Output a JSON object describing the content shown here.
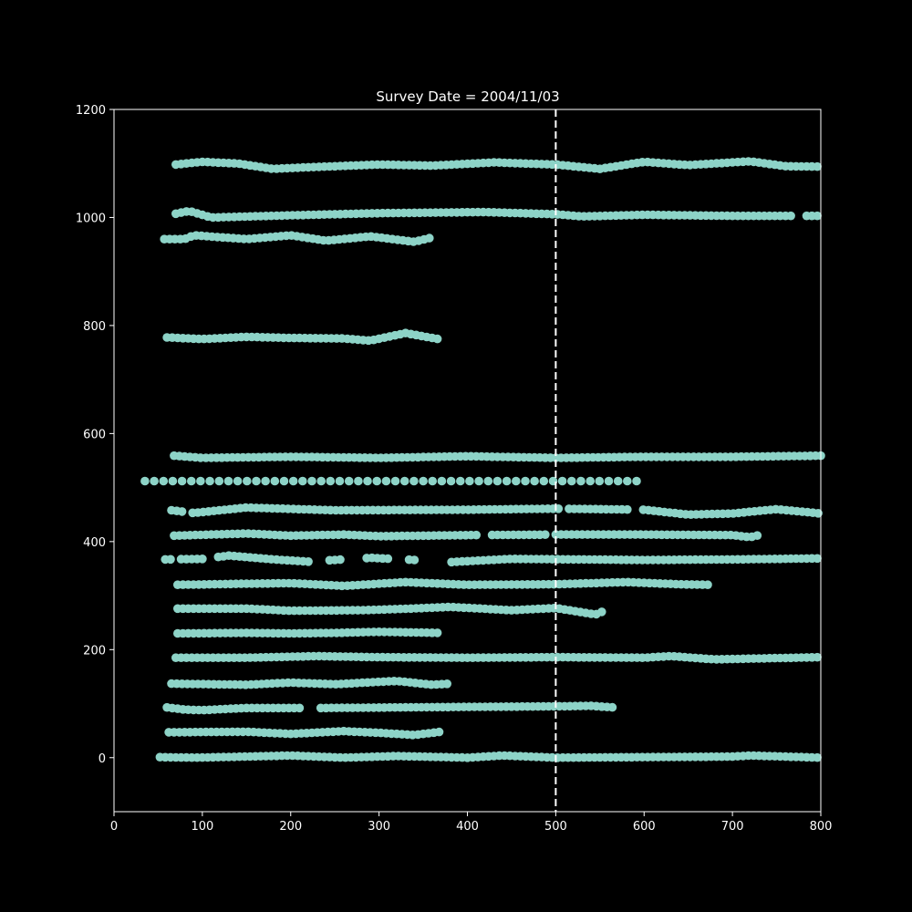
{
  "chart_data": {
    "type": "scatter",
    "title": "Survey Date = 2004/11/03",
    "xlabel": "",
    "ylabel": "",
    "xlim": [
      0,
      800
    ],
    "ylim": [
      -100,
      1200
    ],
    "xticks": [
      0,
      100,
      200,
      300,
      400,
      500,
      600,
      700,
      800
    ],
    "yticks": [
      0,
      200,
      400,
      600,
      800,
      1000,
      1200
    ],
    "grid": false,
    "background": "#000000",
    "marker_color": "#8dd3c7",
    "vline": {
      "x": 500,
      "style": "dashed",
      "color": "#ffffff"
    },
    "series": [
      {
        "start": 70,
        "end": 800,
        "step": 6,
        "profile": [
          [
            70,
            1098
          ],
          [
            100,
            1103
          ],
          [
            140,
            1100
          ],
          [
            180,
            1090
          ],
          [
            220,
            1093
          ],
          [
            300,
            1098
          ],
          [
            360,
            1096
          ],
          [
            430,
            1102
          ],
          [
            500,
            1098
          ],
          [
            550,
            1090
          ],
          [
            600,
            1103
          ],
          [
            650,
            1097
          ],
          [
            720,
            1104
          ],
          [
            760,
            1095
          ],
          [
            800,
            1094
          ]
        ]
      },
      {
        "start": 70,
        "end": 800,
        "step": 6,
        "gaps": [
          [
            770,
            780
          ]
        ],
        "profile": [
          [
            70,
            1007
          ],
          [
            85,
            1012
          ],
          [
            110,
            1000
          ],
          [
            200,
            1004
          ],
          [
            300,
            1008
          ],
          [
            420,
            1010
          ],
          [
            500,
            1006
          ],
          [
            530,
            1002
          ],
          [
            600,
            1005
          ],
          [
            700,
            1003
          ],
          [
            800,
            1003
          ]
        ]
      },
      {
        "start": 57,
        "end": 360,
        "step": 6,
        "profile": [
          [
            57,
            960
          ],
          [
            80,
            960
          ],
          [
            90,
            967
          ],
          [
            150,
            960
          ],
          [
            200,
            967
          ],
          [
            240,
            957
          ],
          [
            290,
            965
          ],
          [
            340,
            955
          ],
          [
            360,
            963
          ]
        ]
      },
      {
        "start": 60,
        "end": 370,
        "step": 6,
        "profile": [
          [
            60,
            778
          ],
          [
            100,
            775
          ],
          [
            150,
            779
          ],
          [
            200,
            777
          ],
          [
            260,
            776
          ],
          [
            290,
            772
          ],
          [
            330,
            786
          ],
          [
            370,
            774
          ]
        ]
      },
      {
        "start": 68,
        "end": 800,
        "step": 6,
        "profile": [
          [
            68,
            559
          ],
          [
            100,
            555
          ],
          [
            200,
            557
          ],
          [
            300,
            555
          ],
          [
            400,
            558
          ],
          [
            500,
            555
          ],
          [
            600,
            557
          ],
          [
            700,
            557
          ],
          [
            800,
            559
          ]
        ]
      },
      {
        "start": 35,
        "end": 592,
        "step": 10.5,
        "profile": [
          [
            35,
            512
          ],
          [
            592,
            512
          ]
        ]
      },
      {
        "start": 65,
        "end": 800,
        "step": 6,
        "gaps": [
          [
            80,
            88
          ],
          [
            505,
            515
          ],
          [
            585,
            595
          ]
        ],
        "profile": [
          [
            65,
            458
          ],
          [
            90,
            453
          ],
          [
            150,
            463
          ],
          [
            250,
            458
          ],
          [
            400,
            459
          ],
          [
            500,
            461
          ],
          [
            550,
            460
          ],
          [
            600,
            459
          ],
          [
            650,
            450
          ],
          [
            700,
            452
          ],
          [
            750,
            460
          ],
          [
            800,
            452
          ]
        ]
      },
      {
        "start": 68,
        "end": 730,
        "step": 6,
        "gaps": [
          [
            415,
            423
          ],
          [
            492,
            500
          ]
        ],
        "profile": [
          [
            68,
            411
          ],
          [
            150,
            415
          ],
          [
            200,
            411
          ],
          [
            260,
            413
          ],
          [
            300,
            410
          ],
          [
            400,
            412
          ],
          [
            500,
            413
          ],
          [
            600,
            413
          ],
          [
            700,
            412
          ],
          [
            720,
            408
          ],
          [
            730,
            412
          ]
        ]
      },
      {
        "start": 58,
        "end": 800,
        "step": 6,
        "gaps": [
          [
            66,
            73
          ],
          [
            103,
            113
          ],
          [
            222,
            243
          ],
          [
            256,
            284
          ],
          [
            312,
            333
          ],
          [
            342,
            377
          ]
        ],
        "profile": [
          [
            58,
            367
          ],
          [
            100,
            368
          ],
          [
            130,
            374
          ],
          [
            180,
            367
          ],
          [
            220,
            363
          ],
          [
            250,
            366
          ],
          [
            290,
            370
          ],
          [
            340,
            366
          ],
          [
            380,
            362
          ],
          [
            450,
            368
          ],
          [
            600,
            366
          ],
          [
            700,
            367
          ],
          [
            800,
            369
          ]
        ]
      },
      {
        "start": 72,
        "end": 675,
        "step": 6,
        "profile": [
          [
            72,
            320
          ],
          [
            150,
            322
          ],
          [
            200,
            323
          ],
          [
            260,
            318
          ],
          [
            330,
            325
          ],
          [
            400,
            320
          ],
          [
            500,
            321
          ],
          [
            580,
            325
          ],
          [
            640,
            321
          ],
          [
            675,
            320
          ]
        ]
      },
      {
        "start": 72,
        "end": 555,
        "step": 6,
        "profile": [
          [
            72,
            276
          ],
          [
            150,
            276
          ],
          [
            200,
            272
          ],
          [
            280,
            273
          ],
          [
            320,
            275
          ],
          [
            380,
            279
          ],
          [
            450,
            273
          ],
          [
            500,
            277
          ],
          [
            545,
            265
          ],
          [
            555,
            272
          ]
        ]
      },
      {
        "start": 72,
        "end": 370,
        "step": 6,
        "profile": [
          [
            72,
            230
          ],
          [
            150,
            231
          ],
          [
            200,
            230
          ],
          [
            250,
            231
          ],
          [
            300,
            233
          ],
          [
            370,
            231
          ]
        ]
      },
      {
        "start": 70,
        "end": 800,
        "step": 6,
        "profile": [
          [
            70,
            185
          ],
          [
            150,
            185
          ],
          [
            230,
            188
          ],
          [
            300,
            186
          ],
          [
            400,
            185
          ],
          [
            500,
            186
          ],
          [
            600,
            185
          ],
          [
            630,
            188
          ],
          [
            680,
            182
          ],
          [
            800,
            186
          ]
        ]
      },
      {
        "start": 65,
        "end": 380,
        "step": 6,
        "profile": [
          [
            65,
            137
          ],
          [
            150,
            135
          ],
          [
            200,
            139
          ],
          [
            250,
            136
          ],
          [
            320,
            142
          ],
          [
            360,
            135
          ],
          [
            380,
            137
          ]
        ]
      },
      {
        "start": 60,
        "end": 565,
        "step": 6,
        "gaps": [
          [
            215,
            233
          ]
        ],
        "profile": [
          [
            60,
            93
          ],
          [
            80,
            89
          ],
          [
            100,
            88
          ],
          [
            150,
            92
          ],
          [
            215,
            92
          ],
          [
            240,
            92
          ],
          [
            400,
            94
          ],
          [
            500,
            95
          ],
          [
            540,
            96
          ],
          [
            565,
            93
          ]
        ]
      },
      {
        "start": 62,
        "end": 370,
        "step": 6,
        "profile": [
          [
            62,
            47
          ],
          [
            150,
            48
          ],
          [
            200,
            44
          ],
          [
            260,
            49
          ],
          [
            300,
            46
          ],
          [
            340,
            42
          ],
          [
            370,
            48
          ]
        ]
      },
      {
        "start": 52,
        "end": 800,
        "step": 6,
        "profile": [
          [
            52,
            1
          ],
          [
            90,
            0
          ],
          [
            150,
            2
          ],
          [
            200,
            4
          ],
          [
            260,
            0
          ],
          [
            320,
            3
          ],
          [
            400,
            0
          ],
          [
            440,
            4
          ],
          [
            500,
            0
          ],
          [
            600,
            1
          ],
          [
            700,
            2
          ],
          [
            720,
            4
          ],
          [
            800,
            0
          ]
        ]
      }
    ]
  }
}
